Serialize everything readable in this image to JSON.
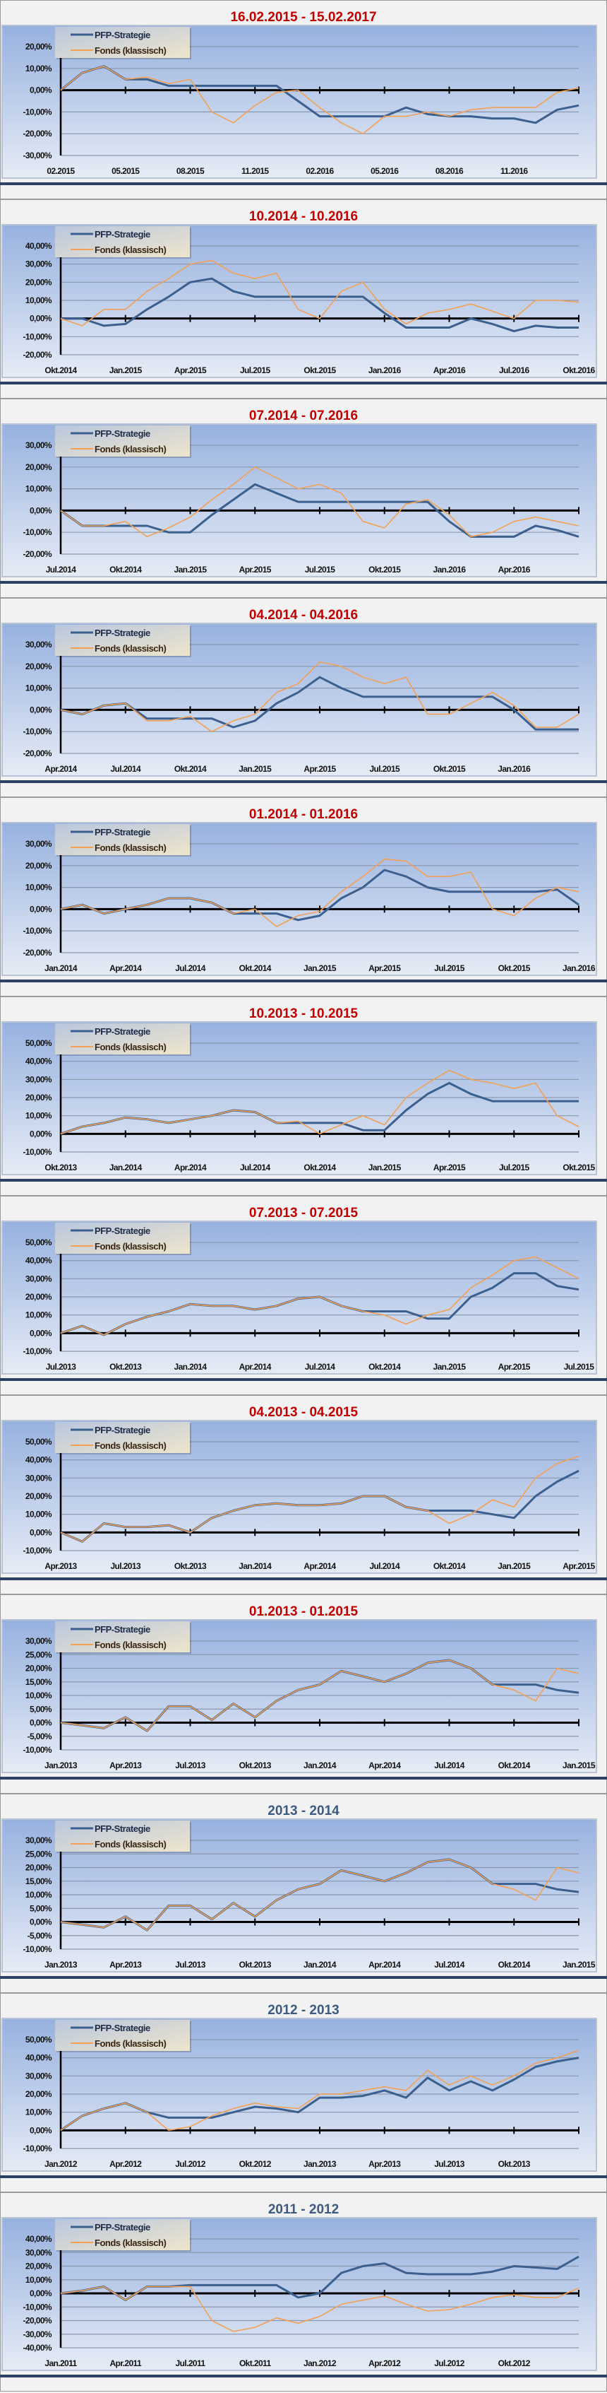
{
  "legend": {
    "pfp": "PFP-Strategie",
    "fonds": "Fonds (klassisch)"
  },
  "colors": {
    "pfp": "#3b5f8e",
    "fonds": "#f2a155",
    "title_red": "#c00000",
    "title_blue": "#3d5a80",
    "divider": "#2b4262"
  },
  "chart_data": [
    {
      "type": "line",
      "title": "16.02.2015 - 15.02.2017",
      "title_color": "red",
      "ylim": [
        -30,
        20
      ],
      "ystep": 10,
      "x_ticks": [
        "02.2015",
        "05.2015",
        "08.2015",
        "11.2015",
        "02.2016",
        "05.2016",
        "08.2016",
        "11.2016"
      ],
      "x_months": 24,
      "series": [
        {
          "name": "PFP-Strategie",
          "values": [
            0,
            8,
            11,
            5,
            5,
            2,
            2,
            2,
            2,
            2,
            2,
            -5,
            -12,
            -12,
            -12,
            -12,
            -8,
            -11,
            -12,
            -12,
            -13,
            -13,
            -15,
            -9,
            -7
          ]
        },
        {
          "name": "Fonds (klassisch)",
          "values": [
            0,
            8,
            11,
            5,
            6,
            3,
            5,
            -10,
            -15,
            -7,
            -1,
            0,
            -8,
            -15,
            -20,
            -12,
            -12,
            -10,
            -12,
            -9,
            -8,
            -8,
            -8,
            -1,
            1
          ]
        }
      ]
    },
    {
      "type": "line",
      "title": "10.2014 - 10.2016",
      "title_color": "red",
      "ylim": [
        -20,
        40
      ],
      "ystep": 10,
      "x_ticks": [
        "Okt.2014",
        "Jan.2015",
        "Apr.2015",
        "Jul.2015",
        "Okt.2015",
        "Jan.2016",
        "Apr.2016",
        "Jul.2016",
        "Okt.2016"
      ],
      "x_months": 24,
      "series": [
        {
          "name": "PFP-Strategie",
          "values": [
            0,
            0,
            -4,
            -3,
            5,
            12,
            20,
            22,
            15,
            12,
            12,
            12,
            12,
            12,
            12,
            3,
            -5,
            -5,
            -5,
            0,
            -3,
            -7,
            -4,
            -5,
            -5
          ]
        },
        {
          "name": "Fonds (klassisch)",
          "values": [
            0,
            -4,
            5,
            5,
            15,
            22,
            30,
            32,
            25,
            22,
            25,
            5,
            0,
            15,
            20,
            5,
            -3,
            3,
            5,
            8,
            4,
            0,
            10,
            10,
            9
          ]
        }
      ]
    },
    {
      "type": "line",
      "title": "07.2014 - 07.2016",
      "title_color": "red",
      "ylim": [
        -20,
        30
      ],
      "ystep": 10,
      "x_ticks": [
        "Jul.2014",
        "Okt.2014",
        "Jan.2015",
        "Apr.2015",
        "Jul.2015",
        "Okt.2015",
        "Jan.2016",
        "Apr.2016"
      ],
      "x_months": 24,
      "series": [
        {
          "name": "PFP-Strategie",
          "values": [
            0,
            -7,
            -7,
            -7,
            -7,
            -10,
            -10,
            -2,
            5,
            12,
            8,
            4,
            4,
            4,
            4,
            4,
            4,
            4,
            -5,
            -12,
            -12,
            -12,
            -7,
            -9,
            -12
          ]
        },
        {
          "name": "Fonds (klassisch)",
          "values": [
            0,
            -7,
            -7,
            -5,
            -12,
            -8,
            -3,
            5,
            12,
            20,
            15,
            10,
            12,
            8,
            -5,
            -8,
            3,
            5,
            -2,
            -12,
            -10,
            -5,
            -3,
            -5,
            -7
          ]
        }
      ]
    },
    {
      "type": "line",
      "title": "04.2014 - 04.2016",
      "title_color": "red",
      "ylim": [
        -20,
        30
      ],
      "ystep": 10,
      "x_ticks": [
        "Apr.2014",
        "Jul.2014",
        "Okt.2014",
        "Jan.2015",
        "Apr.2015",
        "Jul.2015",
        "Okt.2015",
        "Jan.2016"
      ],
      "x_months": 24,
      "series": [
        {
          "name": "PFP-Strategie",
          "values": [
            0,
            -2,
            2,
            3,
            -4,
            -4,
            -4,
            -4,
            -8,
            -5,
            3,
            8,
            15,
            10,
            6,
            6,
            6,
            6,
            6,
            6,
            6,
            0,
            -9,
            -9,
            -9
          ]
        },
        {
          "name": "Fonds (klassisch)",
          "values": [
            0,
            -2,
            2,
            3,
            -5,
            -5,
            -3,
            -10,
            -5,
            -2,
            8,
            12,
            22,
            20,
            15,
            12,
            15,
            -2,
            -2,
            3,
            8,
            2,
            -8,
            -8,
            -2
          ]
        }
      ]
    },
    {
      "type": "line",
      "title": "01.2014 - 01.2016",
      "title_color": "red",
      "ylim": [
        -20,
        30
      ],
      "ystep": 10,
      "x_ticks": [
        "Jan.2014",
        "Apr.2014",
        "Jul.2014",
        "Okt.2014",
        "Jan.2015",
        "Apr.2015",
        "Jul.2015",
        "Okt.2015",
        "Jan.2016"
      ],
      "x_months": 24,
      "series": [
        {
          "name": "PFP-Strategie",
          "values": [
            0,
            2,
            -2,
            0,
            2,
            5,
            5,
            3,
            -2,
            -2,
            -2,
            -5,
            -3,
            5,
            10,
            18,
            15,
            10,
            8,
            8,
            8,
            8,
            8,
            9,
            2
          ]
        },
        {
          "name": "Fonds (klassisch)",
          "values": [
            0,
            2,
            -2,
            0,
            2,
            5,
            5,
            3,
            -2,
            0,
            -8,
            -3,
            -1,
            8,
            15,
            23,
            22,
            15,
            15,
            17,
            0,
            -3,
            5,
            10,
            8
          ]
        }
      ]
    },
    {
      "type": "line",
      "title": "10.2013 - 10.2015",
      "title_color": "red",
      "ylim": [
        -10,
        50
      ],
      "ystep": 10,
      "x_ticks": [
        "Okt.2013",
        "Jan.2014",
        "Apr.2014",
        "Jul.2014",
        "Okt.2014",
        "Jan.2015",
        "Apr.2015",
        "Jul.2015",
        "Okt.2015"
      ],
      "x_months": 24,
      "series": [
        {
          "name": "PFP-Strategie",
          "values": [
            0,
            4,
            6,
            9,
            8,
            6,
            8,
            10,
            13,
            12,
            6,
            6,
            6,
            6,
            2,
            2,
            13,
            22,
            28,
            22,
            18,
            18,
            18,
            18,
            18
          ]
        },
        {
          "name": "Fonds (klassisch)",
          "values": [
            0,
            4,
            6,
            9,
            8,
            6,
            8,
            10,
            13,
            12,
            6,
            7,
            0,
            5,
            10,
            5,
            20,
            28,
            35,
            30,
            28,
            25,
            28,
            10,
            4
          ]
        }
      ]
    },
    {
      "type": "line",
      "title": "07.2013 - 07.2015",
      "title_color": "red",
      "ylim": [
        -10,
        50
      ],
      "ystep": 10,
      "x_ticks": [
        "Jul.2013",
        "Okt.2013",
        "Jan.2014",
        "Apr.2014",
        "Jul.2014",
        "Okt.2014",
        "Jan.2015",
        "Apr.2015",
        "Jul.2015"
      ],
      "x_months": 24,
      "series": [
        {
          "name": "PFP-Strategie",
          "values": [
            0,
            4,
            -1,
            5,
            9,
            12,
            16,
            15,
            15,
            13,
            15,
            19,
            20,
            15,
            12,
            12,
            12,
            8,
            8,
            20,
            25,
            33,
            33,
            26,
            24
          ]
        },
        {
          "name": "Fonds (klassisch)",
          "values": [
            0,
            4,
            -1,
            5,
            9,
            12,
            16,
            15,
            15,
            13,
            15,
            19,
            20,
            15,
            12,
            10,
            5,
            10,
            13,
            25,
            32,
            40,
            42,
            36,
            30
          ]
        }
      ]
    },
    {
      "type": "line",
      "title": "04.2013 - 04.2015",
      "title_color": "red",
      "ylim": [
        -10,
        50
      ],
      "ystep": 10,
      "x_ticks": [
        "Apr.2013",
        "Jul.2013",
        "Okt.2013",
        "Jan.2014",
        "Apr.2014",
        "Jul.2014",
        "Okt.2014",
        "Jan.2015",
        "Apr.2015"
      ],
      "x_months": 24,
      "series": [
        {
          "name": "PFP-Strategie",
          "values": [
            0,
            -5,
            5,
            3,
            3,
            4,
            0,
            8,
            12,
            15,
            16,
            15,
            15,
            16,
            20,
            20,
            14,
            12,
            12,
            12,
            10,
            8,
            20,
            28,
            34
          ]
        },
        {
          "name": "Fonds (klassisch)",
          "values": [
            0,
            -5,
            5,
            3,
            3,
            4,
            0,
            8,
            12,
            15,
            16,
            15,
            15,
            16,
            20,
            20,
            14,
            12,
            5,
            10,
            18,
            14,
            30,
            38,
            42
          ]
        }
      ]
    },
    {
      "type": "line",
      "title": "01.2013 - 01.2015",
      "title_color": "red",
      "ylim": [
        -10,
        30
      ],
      "ystep": 5,
      "x_ticks": [
        "Jan.2013",
        "Apr.2013",
        "Jul.2013",
        "Okt.2013",
        "Jan.2014",
        "Apr.2014",
        "Jul.2014",
        "Okt.2014",
        "Jan.2015"
      ],
      "x_months": 24,
      "series": [
        {
          "name": "PFP-Strategie",
          "values": [
            0,
            -1,
            -2,
            2,
            -3,
            6,
            6,
            1,
            7,
            2,
            8,
            12,
            14,
            19,
            17,
            15,
            18,
            22,
            23,
            20,
            14,
            14,
            14,
            12,
            11
          ]
        },
        {
          "name": "Fonds (klassisch)",
          "values": [
            0,
            -1,
            -2,
            2,
            -3,
            6,
            6,
            1,
            7,
            2,
            8,
            12,
            14,
            19,
            17,
            15,
            18,
            22,
            23,
            20,
            14,
            12,
            8,
            20,
            18
          ]
        }
      ]
    },
    {
      "type": "line",
      "title": "2013 - 2014",
      "title_color": "blue",
      "ylim": [
        -10,
        30
      ],
      "ystep": 5,
      "x_ticks": [
        "Jan.2013",
        "Apr.2013",
        "Jul.2013",
        "Okt.2013",
        "Jan.2014",
        "Apr.2014",
        "Jul.2014",
        "Okt.2014",
        "Jan.2015"
      ],
      "x_months": 24,
      "series": [
        {
          "name": "PFP-Strategie",
          "values": [
            0,
            -1,
            -2,
            2,
            -3,
            6,
            6,
            1,
            7,
            2,
            8,
            12,
            14,
            19,
            17,
            15,
            18,
            22,
            23,
            20,
            14,
            14,
            14,
            12,
            11
          ]
        },
        {
          "name": "Fonds (klassisch)",
          "values": [
            0,
            -1,
            -2,
            2,
            -3,
            6,
            6,
            1,
            7,
            2,
            8,
            12,
            14,
            19,
            17,
            15,
            18,
            22,
            23,
            20,
            14,
            12,
            8,
            20,
            18
          ]
        }
      ]
    },
    {
      "type": "line",
      "title": "2012 - 2013",
      "title_color": "blue",
      "ylim": [
        -10,
        50
      ],
      "ystep": 10,
      "x_ticks": [
        "Jan.2012",
        "Apr.2012",
        "Jul.2012",
        "Okt.2012",
        "Jan.2013",
        "Apr.2013",
        "Jul.2013",
        "Okt.2013"
      ],
      "x_months": 24,
      "series": [
        {
          "name": "PFP-Strategie",
          "values": [
            0,
            8,
            12,
            15,
            10,
            7,
            7,
            7,
            10,
            13,
            12,
            10,
            18,
            18,
            19,
            22,
            18,
            29,
            22,
            27,
            22,
            28,
            35,
            38,
            40
          ]
        },
        {
          "name": "Fonds (klassisch)",
          "values": [
            0,
            8,
            12,
            15,
            10,
            0,
            2,
            8,
            12,
            15,
            13,
            12,
            20,
            20,
            22,
            24,
            22,
            33,
            25,
            30,
            25,
            30,
            37,
            40,
            44
          ]
        }
      ]
    },
    {
      "type": "line",
      "title": "2011 - 2012",
      "title_color": "blue",
      "ylim": [
        -40,
        40
      ],
      "ystep": 10,
      "x_ticks": [
        "Jan.2011",
        "Apr.2011",
        "Jul.2011",
        "Okt.2011",
        "Jan.2012",
        "Apr.2012",
        "Jul.2012",
        "Okt.2012"
      ],
      "x_months": 24,
      "series": [
        {
          "name": "PFP-Strategie",
          "values": [
            0,
            2,
            5,
            -5,
            5,
            5,
            6,
            6,
            6,
            6,
            6,
            -3,
            0,
            15,
            20,
            22,
            15,
            14,
            14,
            14,
            16,
            20,
            19,
            18,
            27
          ]
        },
        {
          "name": "Fonds (klassisch)",
          "values": [
            0,
            2,
            5,
            -5,
            5,
            5,
            5,
            -20,
            -28,
            -25,
            -18,
            -22,
            -17,
            -8,
            -5,
            -2,
            -8,
            -13,
            -12,
            -8,
            -3,
            -1,
            -3,
            -3,
            4
          ]
        }
      ]
    }
  ]
}
